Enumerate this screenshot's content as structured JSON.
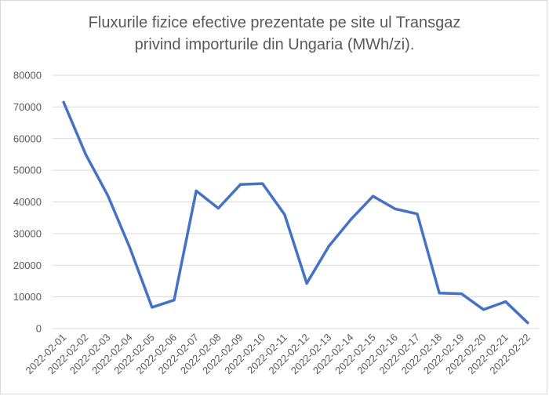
{
  "chart_data": {
    "type": "line",
    "title_lines": [
      "Fluxurile fizice efective prezentate pe site ul Transgaz",
      "privind importurile din Ungaria (MWh/zi)."
    ],
    "xlabel": "",
    "ylabel": "",
    "ylim": [
      0,
      80000
    ],
    "yticks": [
      0,
      10000,
      20000,
      30000,
      40000,
      50000,
      60000,
      70000,
      80000
    ],
    "grid": true,
    "legend": "none",
    "categories": [
      "2022-02-01",
      "2022-02-02",
      "2022-02-03",
      "2022-02-04",
      "2022-02-05",
      "2022-02-06",
      "2022-02-07",
      "2022-02-08",
      "2022-02-09",
      "2022-02-10",
      "2022-02-11",
      "2022-02-12",
      "2022-02-13",
      "2022-02-14",
      "2022-02-15",
      "2022-02-16",
      "2022-02-17",
      "2022-02-18",
      "2022-02-19",
      "2022-02-20",
      "2022-02-21",
      "2022-02-22"
    ],
    "series": [
      {
        "values": [
          71500,
          55000,
          42000,
          25500,
          6700,
          9000,
          43500,
          38000,
          45500,
          45800,
          36000,
          14300,
          26000,
          34500,
          41800,
          37800,
          36200,
          11200,
          11000,
          6000,
          8500,
          1800
        ],
        "color": "#4472c4"
      }
    ],
    "colors": {
      "line": "#4472c4",
      "grid": "#d9d9d9",
      "text": "#595959"
    }
  }
}
